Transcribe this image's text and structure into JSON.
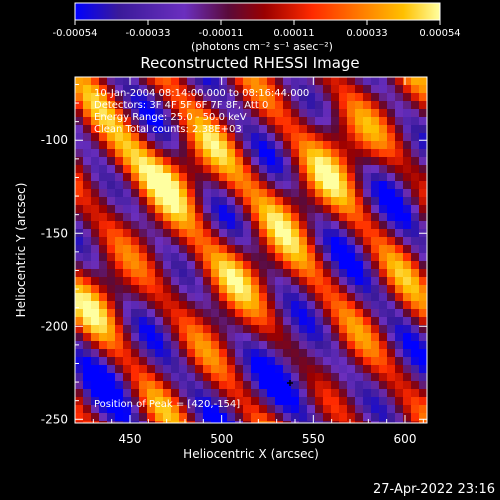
{
  "chart_data": {
    "type": "heatmap",
    "title": "Reconstructed RHESSI Image",
    "xlabel": "Heliocentric X (arcsec)",
    "ylabel": "Heliocentric Y (arcsec)",
    "xlim": [
      420,
      612
    ],
    "ylim": [
      -252,
      -66
    ],
    "xticks": [
      450,
      500,
      550,
      600
    ],
    "yticks": [
      -100,
      -150,
      -200,
      -250
    ],
    "colorbar": {
      "range": [
        -0.00054,
        0.00054
      ],
      "ticks": [
        "-0.00054",
        "-0.00033",
        "-0.00011",
        "0.00011",
        "0.00033",
        "0.00054"
      ],
      "unit_label": "(photons cm⁻² s⁻¹ asec⁻²)",
      "colormap": [
        "#0000ff",
        "#3a1a9a",
        "#6b2fbf",
        "#5a0a3a",
        "#9a0000",
        "#ff2a00",
        "#ff7a00",
        "#ffc000",
        "#ffffa0"
      ]
    },
    "annotations": [
      "10-Jan-2004 08:14:00.000 to 08:16:44.000",
      "Detectors: 3F 4F 5F 6F 7F 8F, Att 0",
      "Energy Range: 25.0 - 50.0 keV",
      "Clean     Total counts: 2.38E+03",
      "Position of Peak = [420,-154]"
    ],
    "peak": [
      420,
      -154
    ],
    "timestamp": "27-Apr-2022 23:16"
  }
}
